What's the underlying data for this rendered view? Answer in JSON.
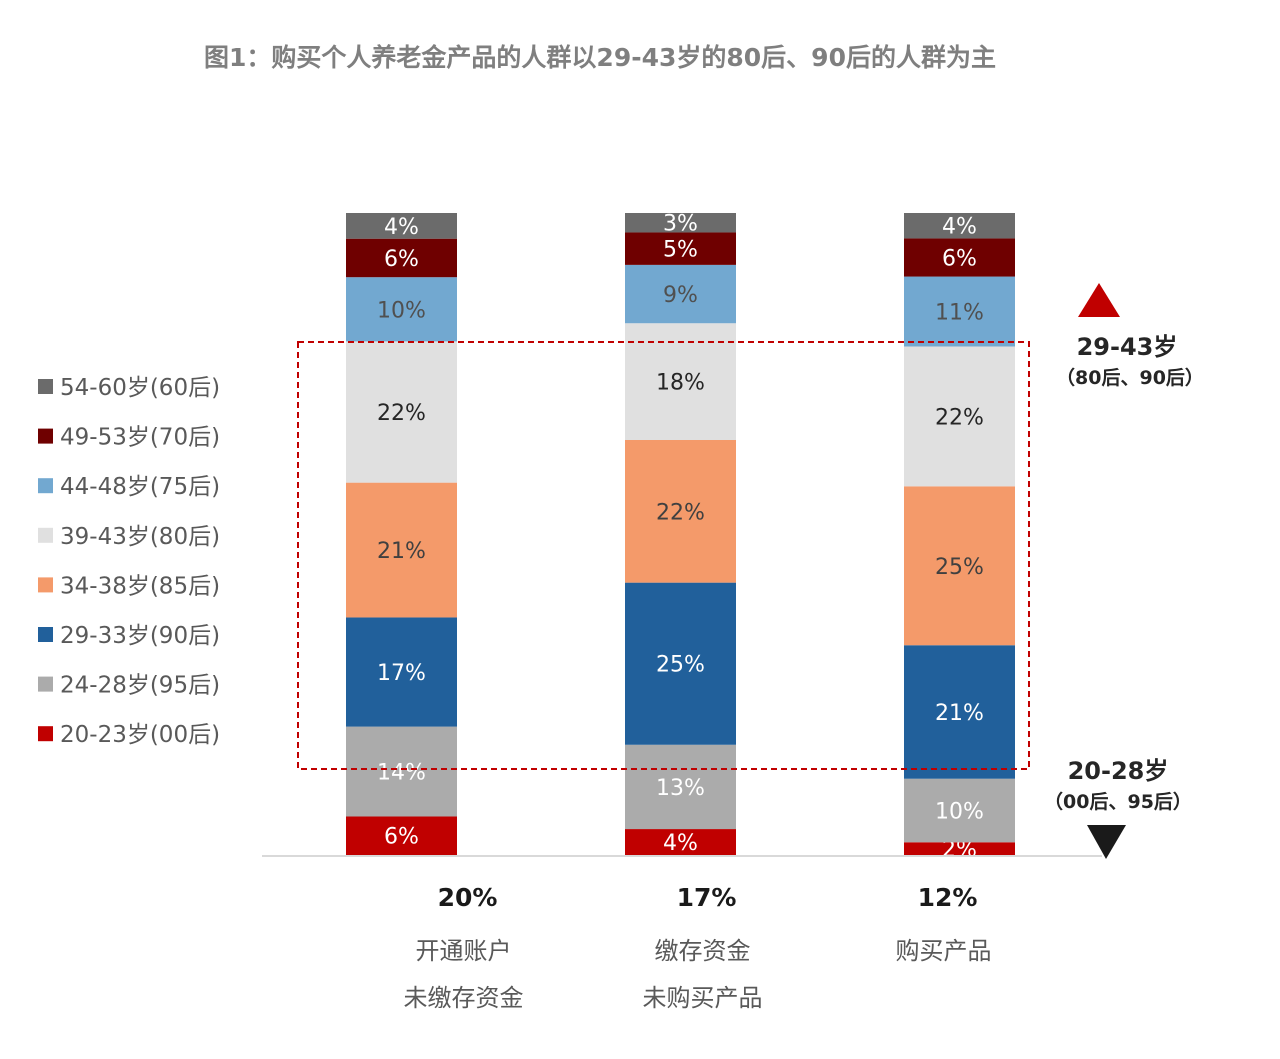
{
  "chart_data": {
    "type": "bar",
    "stacked": true,
    "title": "图1：购买个人养老金产品的人群以29-43岁的80后、90后的人群为主",
    "categories": [
      {
        "pct": "20%",
        "line1": "开通账户",
        "line2": "未缴存资金"
      },
      {
        "pct": "17%",
        "line1": "缴存资金",
        "line2": "未购买产品"
      },
      {
        "pct": "12%",
        "line1": "购买产品",
        "line2": ""
      }
    ],
    "series": [
      {
        "name": "20-23岁(00后)",
        "color": "#c00000",
        "label_color": "#ffffff",
        "values": [
          6,
          4,
          2
        ]
      },
      {
        "name": "24-28岁(95后)",
        "color": "#ababab",
        "label_color": "#ffffff",
        "values": [
          14,
          13,
          10
        ]
      },
      {
        "name": "29-33岁(90后)",
        "color": "#21609b",
        "label_color": "#ffffff",
        "values": [
          17,
          25,
          21
        ]
      },
      {
        "name": "34-38岁(85后)",
        "color": "#f49a6a",
        "label_color": "#404040",
        "values": [
          21,
          22,
          25
        ]
      },
      {
        "name": "39-43岁(80后)",
        "color": "#e0e0e0",
        "label_color": "#262626",
        "values": [
          22,
          18,
          22
        ]
      },
      {
        "name": "44-48岁(75后)",
        "color": "#72a8d0",
        "label_color": "#505050",
        "values": [
          10,
          9,
          11
        ]
      },
      {
        "name": "49-53岁(70后)",
        "color": "#6f0000",
        "label_color": "#ffffff",
        "values": [
          6,
          5,
          6
        ]
      },
      {
        "name": "54-60岁(60后)",
        "color": "#6b6b6b",
        "label_color": "#ffffff",
        "values": [
          4,
          3,
          4
        ]
      }
    ],
    "value_suffix": "%",
    "legend_position": "left",
    "annotations": {
      "upper": {
        "label": "29-43岁",
        "sub": "（80后、90后）",
        "color": "#c00000"
      },
      "lower": {
        "label": "20-28岁",
        "sub": "（00后、95后）",
        "color": "#1a1a1a"
      }
    },
    "highlight_box_color": "#c00000"
  }
}
